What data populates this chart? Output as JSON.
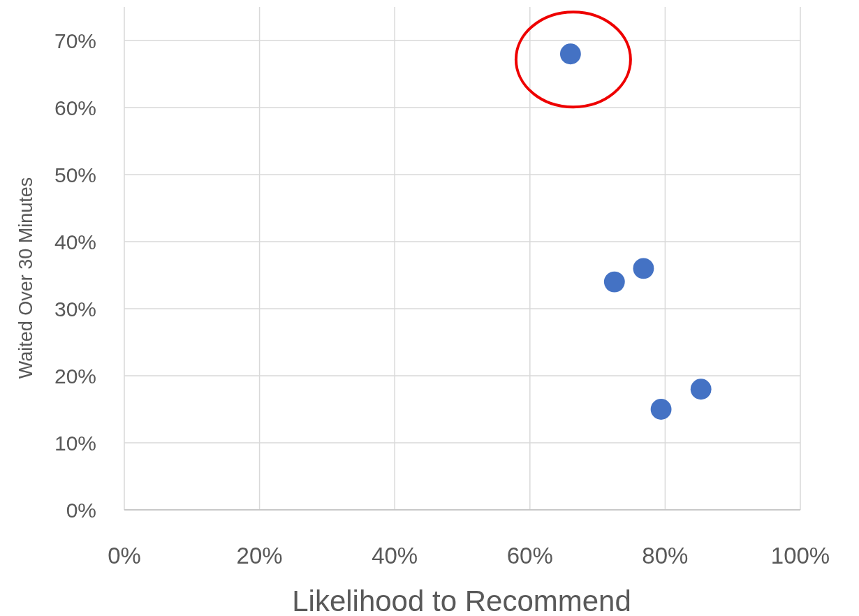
{
  "chart_data": {
    "type": "scatter",
    "xlabel": "Likelihood to Recommend",
    "ylabel": "Waited Over 30 Minutes",
    "x": [
      66,
      72.5,
      76.8,
      85.3,
      79.4
    ],
    "values": [
      68,
      34,
      36,
      18,
      15
    ],
    "color": "#4472c4",
    "marker": "circle",
    "grid": true,
    "xlim": [
      0,
      100
    ],
    "ylim": [
      0,
      75
    ],
    "xticks": [
      {
        "value": 0,
        "label": "0%"
      },
      {
        "value": 20,
        "label": "20%"
      },
      {
        "value": 40,
        "label": "40%"
      },
      {
        "value": 60,
        "label": "60%"
      },
      {
        "value": 80,
        "label": "80%"
      },
      {
        "value": 100,
        "label": "100%"
      }
    ],
    "yticks": [
      {
        "value": 0,
        "label": "0%"
      },
      {
        "value": 10,
        "label": "10%"
      },
      {
        "value": 20,
        "label": "20%"
      },
      {
        "value": 30,
        "label": "30%"
      },
      {
        "value": 40,
        "label": "40%"
      },
      {
        "value": 50,
        "label": "50%"
      },
      {
        "value": 60,
        "label": "60%"
      },
      {
        "value": 70,
        "label": "70%"
      }
    ]
  }
}
